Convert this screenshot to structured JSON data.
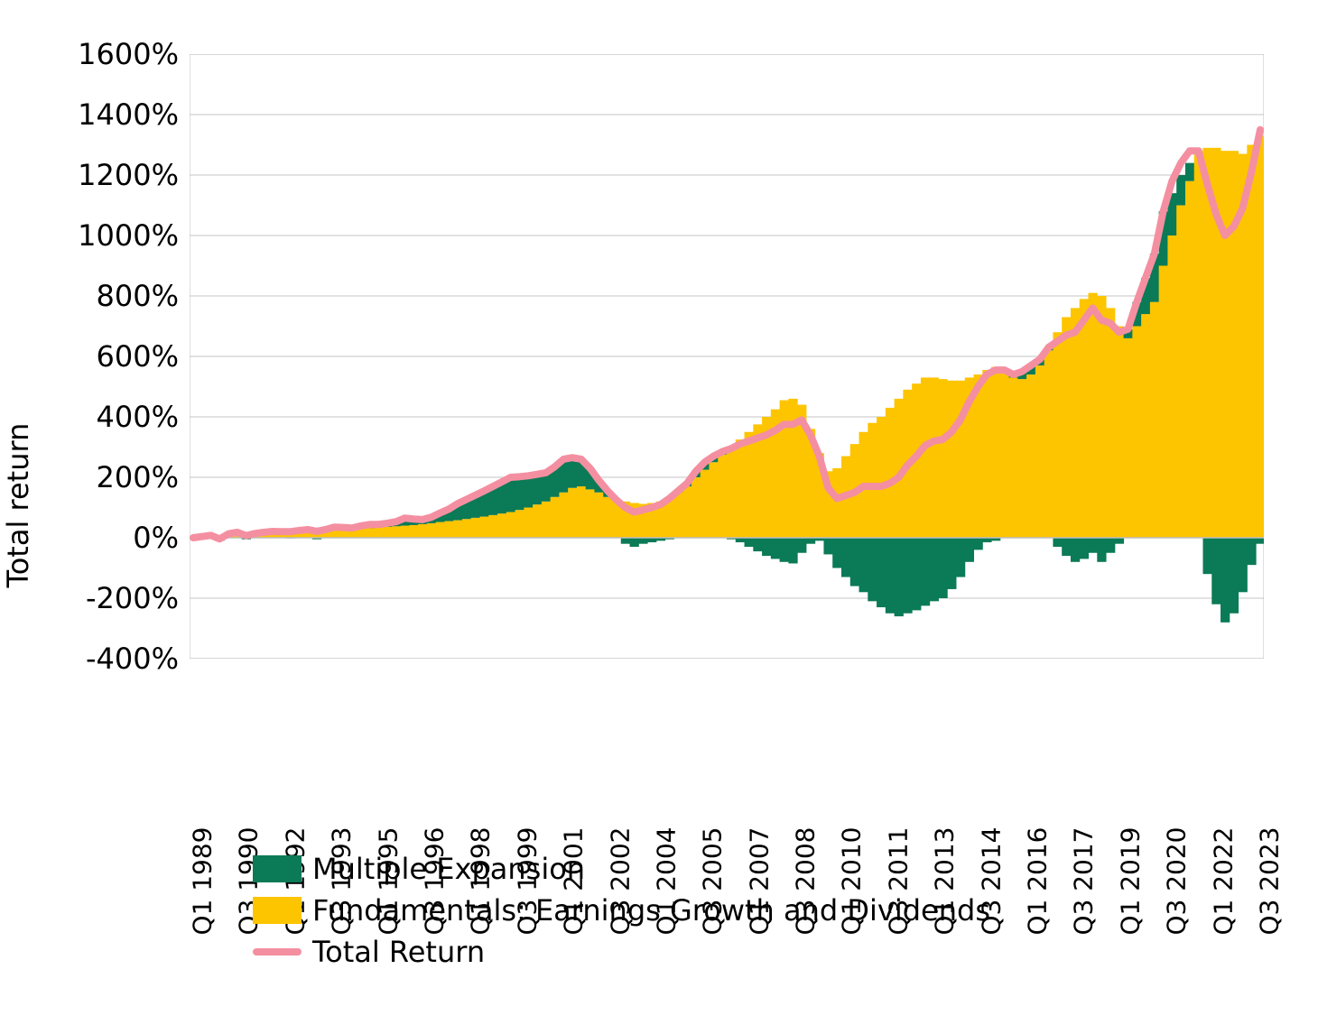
{
  "chart": {
    "type": "stacked-area-with-line",
    "ylabel": "Total return",
    "ylim": [
      -400,
      1600
    ],
    "ytick_step": 200,
    "yticks": [
      -400,
      -200,
      0,
      200,
      400,
      600,
      800,
      1000,
      1200,
      1400,
      1600
    ],
    "ytick_labels": [
      "-400%",
      "-200%",
      "0%",
      "200%",
      "400%",
      "600%",
      "800%",
      "1000%",
      "1200%",
      "1400%",
      "1600%"
    ],
    "grid_color": "#d9d9d9",
    "axis_color": "#bfbfbf",
    "background_color": "#ffffff",
    "colors": {
      "multiple_expansion": "#0b7a56",
      "fundamentals": "#fdc400",
      "total_return_line": "#f48fa1"
    },
    "line_width": 8,
    "label_fontsize": 32,
    "tick_fontsize": 28,
    "x_labels_shown": [
      "Q1 1989",
      "Q3 1990",
      "Q1 1992",
      "Q3 1993",
      "Q1 1995",
      "Q3 1996",
      "Q1 1998",
      "Q3 1999",
      "Q1 2001",
      "Q3 2002",
      "Q1 2004",
      "Q3 2005",
      "Q1 2007",
      "Q3 2008",
      "Q1 2010",
      "Q3 2011",
      "Q1 2013",
      "Q3 2014",
      "Q1 2016",
      "Q3 2017",
      "Q1 2019",
      "Q3 2020",
      "Q1 2022",
      "Q3 2023"
    ],
    "series_order": [
      "fundamentals",
      "multiple_expansion"
    ],
    "fundamentals": [
      0,
      2,
      4,
      6,
      8,
      10,
      12,
      14,
      16,
      18,
      20,
      22,
      24,
      25,
      26,
      27,
      28,
      29,
      30,
      31,
      32,
      34,
      36,
      38,
      40,
      42,
      45,
      48,
      52,
      55,
      58,
      62,
      66,
      70,
      75,
      80,
      85,
      92,
      100,
      110,
      120,
      135,
      150,
      165,
      170,
      160,
      150,
      135,
      125,
      120,
      115,
      112,
      115,
      120,
      135,
      150,
      170,
      200,
      225,
      250,
      275,
      300,
      325,
      350,
      375,
      400,
      425,
      455,
      460,
      440,
      360,
      280,
      220,
      230,
      270,
      310,
      350,
      380,
      400,
      430,
      460,
      490,
      510,
      530,
      530,
      525,
      520,
      520,
      530,
      540,
      555,
      565,
      555,
      530,
      525,
      540,
      570,
      620,
      680,
      730,
      760,
      790,
      810,
      800,
      760,
      700,
      660,
      700,
      740,
      780,
      900,
      1000,
      1100,
      1180,
      1280,
      1290,
      1290,
      1280,
      1280,
      1270,
      1300,
      1330
    ],
    "multiple_expansion": [
      0,
      2,
      4,
      -10,
      5,
      8,
      -5,
      0,
      2,
      3,
      0,
      -2,
      0,
      2,
      -5,
      0,
      5,
      3,
      0,
      5,
      8,
      10,
      12,
      15,
      25,
      20,
      15,
      20,
      30,
      40,
      55,
      65,
      75,
      85,
      95,
      105,
      115,
      110,
      105,
      100,
      95,
      100,
      110,
      100,
      90,
      70,
      40,
      20,
      0,
      -20,
      -30,
      -20,
      -15,
      -10,
      -5,
      5,
      10,
      20,
      25,
      20,
      10,
      -5,
      -15,
      -30,
      -45,
      -60,
      -70,
      -80,
      -85,
      -50,
      -20,
      -10,
      -55,
      -100,
      -130,
      -160,
      -180,
      -210,
      -230,
      -250,
      -260,
      -250,
      -240,
      -225,
      -210,
      -200,
      -170,
      -130,
      -80,
      -40,
      -15,
      -10,
      0,
      10,
      25,
      30,
      20,
      10,
      -30,
      -60,
      -80,
      -70,
      -50,
      -80,
      -50,
      -20,
      30,
      80,
      120,
      160,
      180,
      140,
      100,
      60,
      0,
      -120,
      -220,
      -280,
      -250,
      -180,
      -90,
      -20,
      20
    ],
    "total_return": [
      0,
      4,
      8,
      -4,
      13,
      18,
      7,
      14,
      18,
      21,
      20,
      20,
      24,
      27,
      21,
      27,
      35,
      34,
      32,
      39,
      44,
      44,
      48,
      53,
      65,
      62,
      60,
      68,
      82,
      95,
      113,
      127,
      141,
      155,
      170,
      185,
      200,
      202,
      205,
      210,
      215,
      235,
      260,
      265,
      260,
      230,
      190,
      155,
      125,
      100,
      85,
      92,
      100,
      110,
      130,
      155,
      180,
      220,
      250,
      270,
      285,
      295,
      310,
      320,
      330,
      340,
      355,
      375,
      375,
      390,
      340,
      270,
      165,
      130,
      140,
      150,
      170,
      170,
      170,
      180,
      200,
      240,
      270,
      305,
      320,
      325,
      350,
      390,
      450,
      500,
      540,
      555,
      555,
      540,
      550,
      570,
      590,
      630,
      650,
      670,
      680,
      720,
      760,
      720,
      710,
      680,
      690,
      780,
      860,
      940,
      1080,
      1180,
      1240,
      1280,
      1280,
      1170,
      1070,
      1000,
      1030,
      1090,
      1210,
      1350
    ],
    "legend": [
      {
        "key": "multiple_expansion",
        "label": "Multiple Expansion",
        "type": "box"
      },
      {
        "key": "fundamentals",
        "label": "Fundamentals: Earnings Growth and Dividends",
        "type": "box"
      },
      {
        "key": "total_return_line",
        "label": "Total Return",
        "type": "line"
      }
    ]
  }
}
